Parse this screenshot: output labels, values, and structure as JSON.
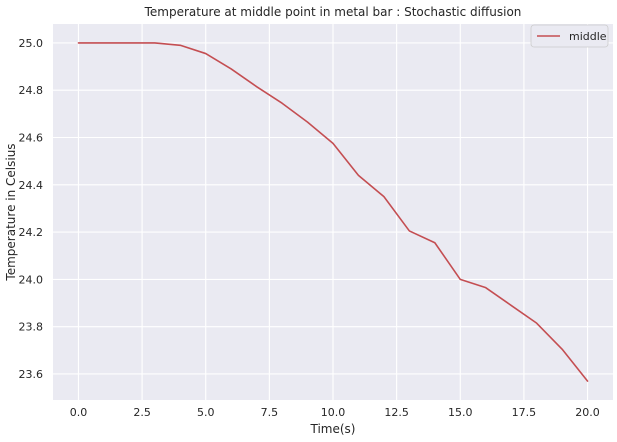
{
  "chart_data": {
    "type": "line",
    "title": "Temperature at middle point in metal bar : Stochastic diffusion",
    "xlabel": "Time(s)",
    "ylabel": "Temperature in Celsius",
    "xlim": [
      -1,
      21
    ],
    "ylim": [
      23.49,
      25.08
    ],
    "xticks": [
      0.0,
      2.5,
      5.0,
      7.5,
      10.0,
      12.5,
      15.0,
      17.5,
      20.0
    ],
    "xtick_labels": [
      "0.0",
      "2.5",
      "5.0",
      "7.5",
      "10.0",
      "12.5",
      "15.0",
      "17.5",
      "20.0"
    ],
    "yticks": [
      23.6,
      23.8,
      24.0,
      24.2,
      24.4,
      24.6,
      24.8,
      25.0
    ],
    "ytick_labels": [
      "23.6",
      "23.8",
      "24.0",
      "24.2",
      "24.4",
      "24.6",
      "24.8",
      "25.0"
    ],
    "grid": true,
    "legend_position": "top-right",
    "background_color": "#eaeaf2",
    "series": [
      {
        "name": "middle",
        "color": "#c44e52",
        "x": [
          0,
          1,
          2,
          3,
          4,
          5,
          6,
          7,
          8,
          9,
          10,
          11,
          12,
          13,
          14,
          15,
          16,
          17,
          18,
          19,
          20
        ],
        "y": [
          25.0,
          25.0,
          25.0,
          25.0,
          24.99,
          24.955,
          24.89,
          24.815,
          24.745,
          24.665,
          24.575,
          24.44,
          24.35,
          24.205,
          24.155,
          24.0,
          23.965,
          23.89,
          23.815,
          23.705,
          23.57
        ]
      }
    ]
  }
}
